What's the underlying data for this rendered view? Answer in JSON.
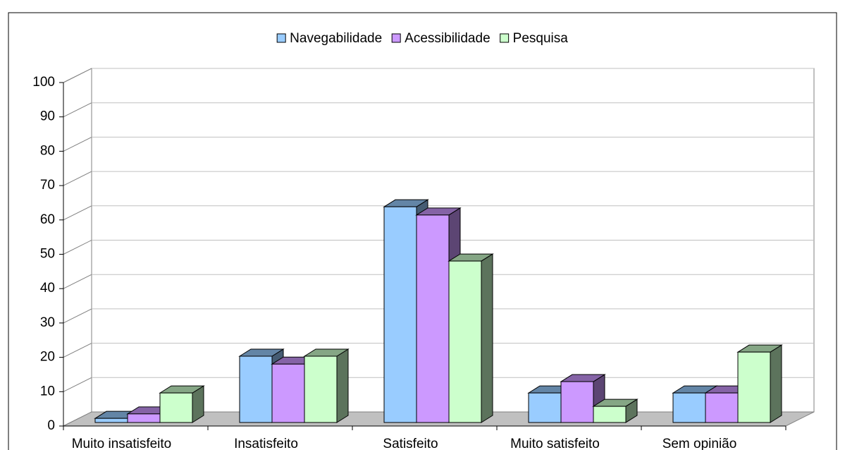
{
  "chart_data": {
    "type": "bar3d",
    "categories": [
      "Muito insatisfeito",
      "Insatisfeito",
      "Satisfeito",
      "Muito satisfeito",
      "Sem opinião"
    ],
    "series": [
      {
        "name": "Navegabilidade",
        "color": "#99ccff",
        "values": [
          1.2,
          19.3,
          62.8,
          8.6,
          8.6
        ]
      },
      {
        "name": "Acessibilidade",
        "color": "#cc99ff",
        "values": [
          2.5,
          17,
          60.4,
          11.9,
          8.6
        ]
      },
      {
        "name": "Pesquisa",
        "color": "#ccffcc",
        "values": [
          8.6,
          19.3,
          47,
          4.7,
          20.5
        ]
      }
    ],
    "ylim": [
      0,
      100
    ],
    "yticks": [
      0,
      10,
      20,
      30,
      40,
      50,
      60,
      70,
      80,
      90,
      100
    ],
    "grid": true,
    "legend": "top"
  }
}
